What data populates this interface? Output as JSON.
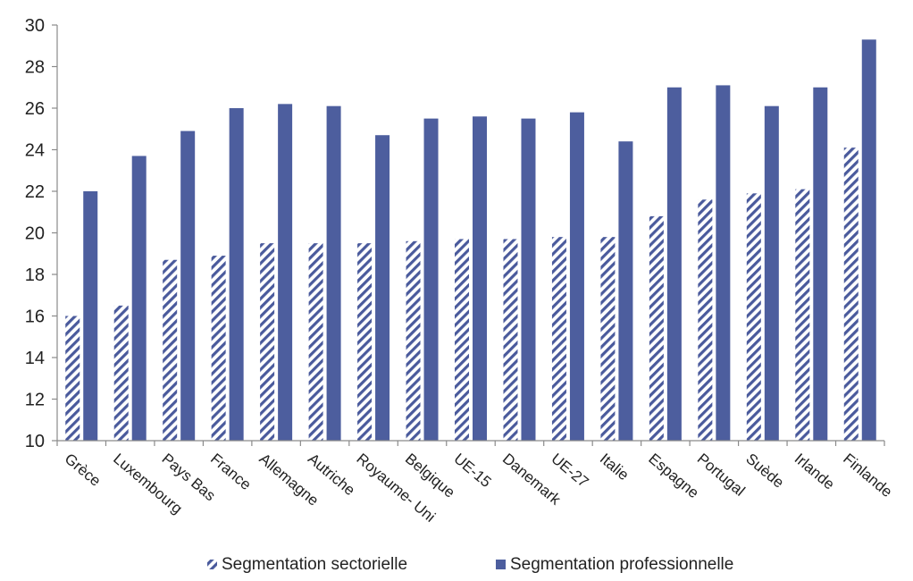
{
  "chart_data": {
    "type": "bar",
    "title": "",
    "xlabel": "",
    "ylabel": "",
    "ylim": [
      10,
      30
    ],
    "yticks": [
      10,
      12,
      14,
      16,
      18,
      20,
      22,
      24,
      26,
      28,
      30
    ],
    "grid": false,
    "legend_position": "bottom",
    "categories": [
      "Grèce",
      "Luxembourg",
      "Pays Bas",
      "France",
      "Allemagne",
      "Autriche",
      "Royaume- Uni",
      "Belgique",
      "UE-15",
      "Danemark",
      "UE-27",
      "Italie",
      "Espagne",
      "Portugal",
      "Suède",
      "Irlande",
      "Finlande"
    ],
    "series": [
      {
        "name": "Segmentation sectorielle",
        "color": "#4a5a9c",
        "pattern": "diagonal-hatch",
        "values": [
          16.0,
          16.5,
          18.7,
          18.9,
          19.5,
          19.5,
          19.5,
          19.6,
          19.7,
          19.7,
          19.8,
          19.8,
          20.8,
          21.6,
          21.9,
          22.1,
          24.1
        ]
      },
      {
        "name": "Segmentation professionnelle",
        "color": "#4d5e9e",
        "pattern": "solid",
        "values": [
          22.0,
          23.7,
          24.9,
          26.0,
          26.2,
          26.1,
          24.7,
          25.5,
          25.6,
          25.5,
          25.8,
          24.4,
          27.0,
          27.1,
          26.1,
          27.0,
          29.3
        ]
      }
    ]
  }
}
